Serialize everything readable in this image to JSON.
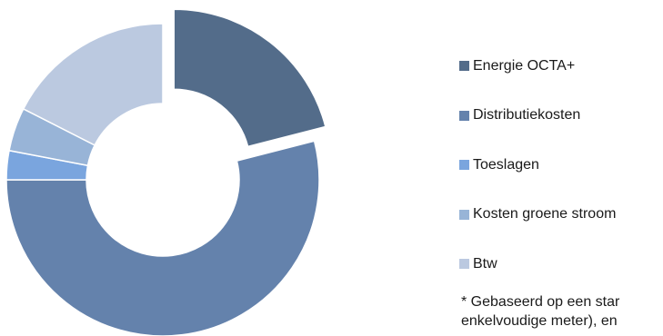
{
  "chart_data": {
    "type": "pie",
    "donut": true,
    "exploded_slice": "Energie OCTA+",
    "slices": [
      {
        "label": "Energie OCTA+",
        "value": 21,
        "color": "#536c8a"
      },
      {
        "label": "Distributiekosten",
        "value": 54,
        "color": "#6482ac"
      },
      {
        "label": "Toeslagen",
        "value": 3,
        "color": "#7aa5de"
      },
      {
        "label": "Kosten groene stroom",
        "value": 4.5,
        "color": "#98b4d7"
      },
      {
        "label": "Btw",
        "value": 17.5,
        "color": "#bbc9e0"
      }
    ],
    "legend_placement": "right"
  },
  "footnote": {
    "line1": "* Gebaseerd op een star",
    "line2": "enkelvoudige meter), en"
  }
}
